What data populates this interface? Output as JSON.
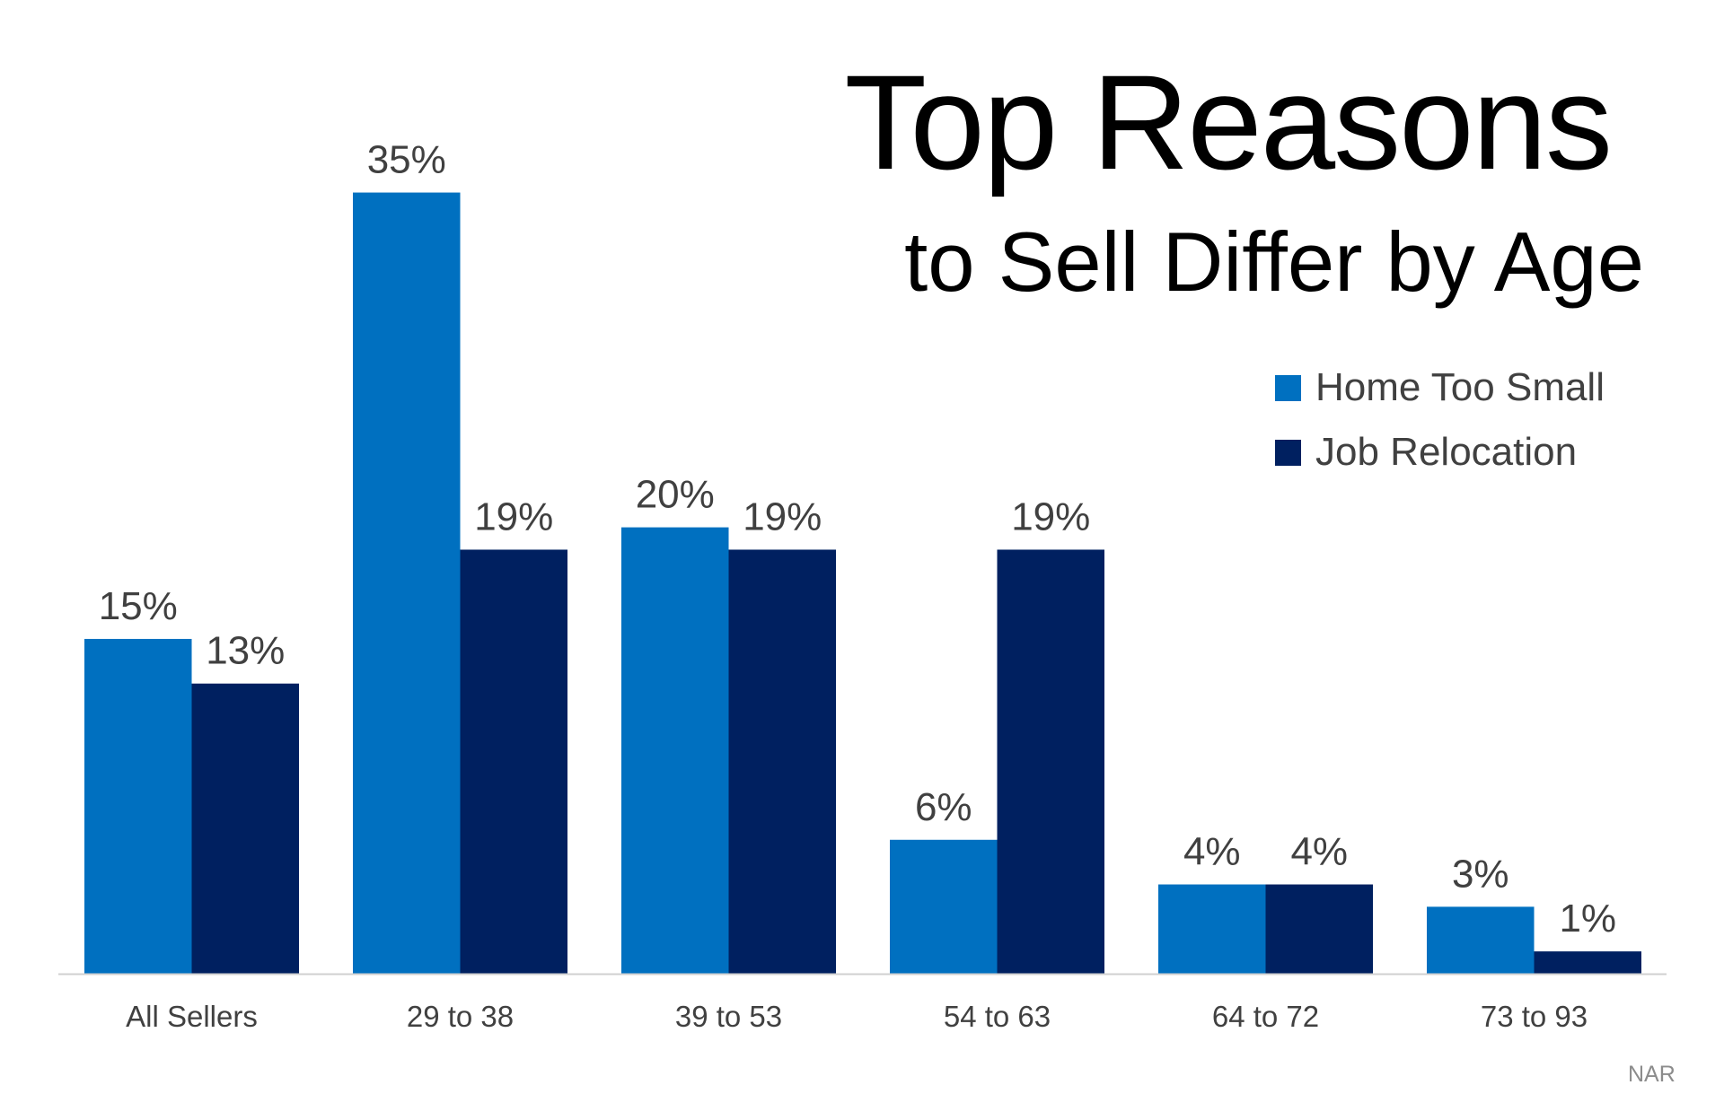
{
  "chart_data": {
    "type": "bar",
    "title": "Top Reasons",
    "subtitle": "to Sell Differ by Age",
    "categories": [
      "All Sellers",
      "29 to 38",
      "39 to 53",
      "54 to 63",
      "64 to 72",
      "73 to 93"
    ],
    "series": [
      {
        "name": "Home Too Small",
        "color": "#0070C0",
        "values": [
          15,
          35,
          20,
          6,
          4,
          3
        ]
      },
      {
        "name": "Job Relocation",
        "color": "#002060",
        "values": [
          13,
          19,
          19,
          19,
          4,
          1
        ]
      }
    ],
    "value_suffix": "%",
    "ylim": [
      0,
      35
    ],
    "grid": false,
    "legend_position": "top-right",
    "source": "NAR"
  }
}
